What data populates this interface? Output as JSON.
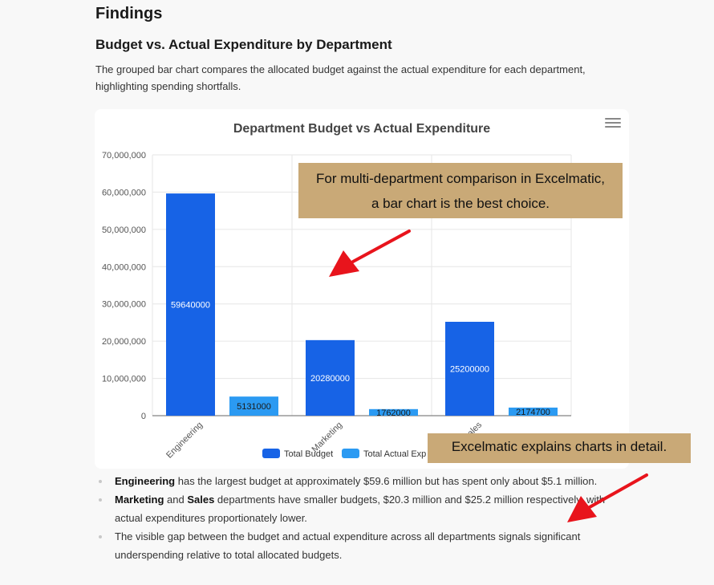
{
  "section": {
    "title": "Findings",
    "subtitle": "Budget vs. Actual Expenditure by Department",
    "intro": "The grouped bar chart compares the allocated budget against the actual expenditure for each department, highlighting spending shortfalls."
  },
  "chart_data": {
    "type": "bar",
    "title": "Department Budget vs Actual Expenditure",
    "categories": [
      "Engineering",
      "Marketing",
      "Sales"
    ],
    "series": [
      {
        "name": "Total Budget",
        "values": [
          59640000,
          20280000,
          25200000
        ],
        "color": "#1763e6"
      },
      {
        "name": "Total Actual Expenditure",
        "values": [
          5131000,
          1762000,
          2174700
        ],
        "color": "#2b9af2"
      }
    ],
    "ylim": [
      0,
      70000000
    ],
    "yticks": [
      "0",
      "10,000,000",
      "20,000,000",
      "30,000,000",
      "40,000,000",
      "50,000,000",
      "60,000,000",
      "70,000,000"
    ],
    "legend_visible": [
      "Total Budget",
      "Total Actual Exp"
    ],
    "legend_position": "bottom",
    "grid": true
  },
  "callouts": {
    "top_line1": "For multi-department comparison in Excelmatic,",
    "top_line2": "a bar chart is the best choice.",
    "bottom": "Excelmatic explains charts in detail."
  },
  "bullets": [
    {
      "bold1": "Engineering",
      "text1": " has the largest budget at approximately $59.6 million but has spent only about $5.1 million."
    },
    {
      "bold1": "Marketing",
      "mid": " and ",
      "bold2": "Sales",
      "text1": " departments have smaller budgets, $20.3 million and $25.2 million respectively, with actual expenditures proportionately lower."
    },
    {
      "text1": "The visible gap between the budget and actual expenditure across all departments signals significant underspending relative to total allocated budgets."
    }
  ],
  "colors": {
    "callout": "#c9a977",
    "arrow": "#e8141c"
  }
}
